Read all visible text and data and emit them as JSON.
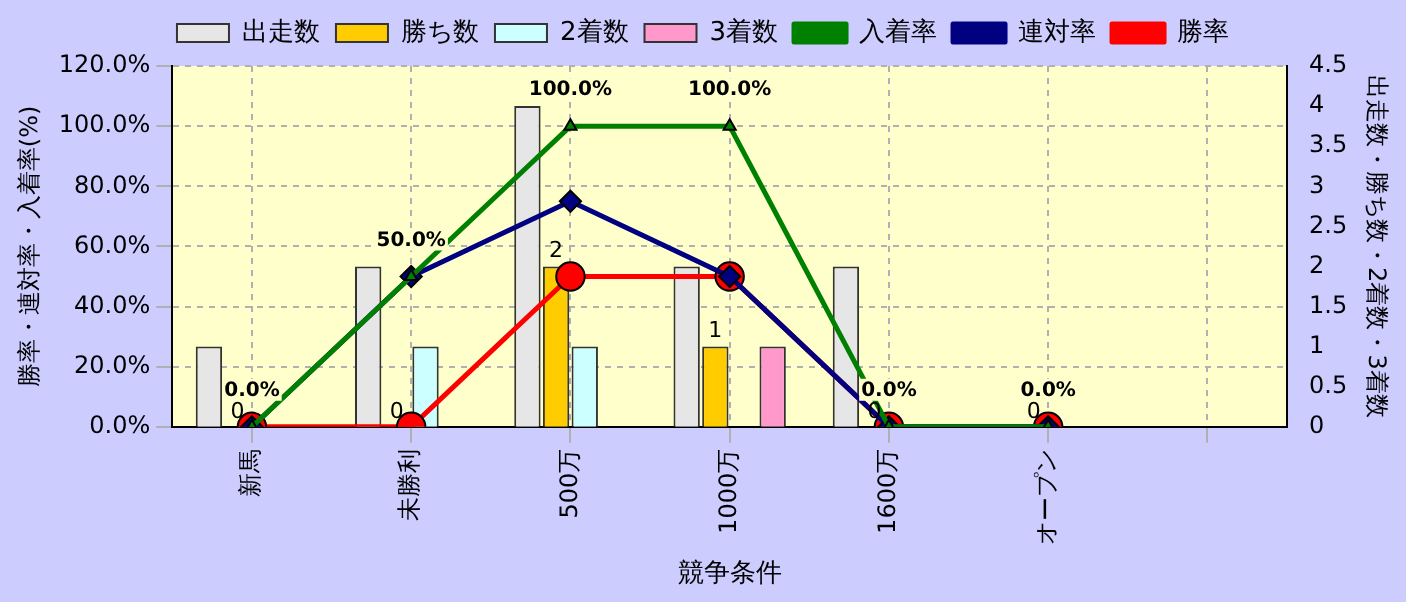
{
  "chart_data": {
    "type": "bar",
    "xlabel": "競争条件",
    "ylabel": "勝率・連対率・入着率(%)",
    "y2label": "出走数・勝ち数・2着数・3着数",
    "categories": [
      "新馬",
      "未勝利",
      "500万",
      "1000万",
      "1600万",
      "オープン"
    ],
    "series": [
      {
        "name": "出走数",
        "axis": "y2",
        "color": "#e6e6e6",
        "values": [
          1,
          2,
          4,
          2,
          2,
          0
        ]
      },
      {
        "name": "勝ち数",
        "axis": "y2",
        "color": "#ffcc00",
        "values": [
          0,
          0,
          2,
          1,
          0,
          0
        ],
        "value_labels": [
          "0",
          "0",
          "2",
          "1",
          "0",
          "0"
        ]
      },
      {
        "name": "2着数",
        "axis": "y2",
        "color": "#ccffff",
        "values": [
          0,
          1,
          1,
          0,
          0,
          0
        ]
      },
      {
        "name": "3着数",
        "axis": "y2",
        "color": "#ff99cc",
        "values": [
          0,
          0,
          0,
          1,
          0,
          0
        ]
      },
      {
        "name": "入着率",
        "type": "line",
        "marker": "triangle",
        "color": "#008000",
        "values": [
          0,
          50,
          100,
          100,
          0,
          0
        ],
        "value_labels": [
          "0.0%",
          "50.0%",
          "100.0%",
          "100.0%",
          "0.0%",
          "0.0%"
        ]
      },
      {
        "name": "連対率",
        "type": "line",
        "marker": "diamond",
        "color": "#000080",
        "values": [
          0,
          50,
          75,
          50,
          0,
          0
        ]
      },
      {
        "name": "勝率",
        "type": "line",
        "marker": "circle",
        "color": "#ff0000",
        "values": [
          0,
          0,
          50,
          50,
          0,
          0
        ]
      }
    ],
    "ylim": [
      0,
      120
    ],
    "yticks": [
      {
        "value": 0,
        "label": "0.0%"
      },
      {
        "value": 20,
        "label": "20.0%"
      },
      {
        "value": 40,
        "label": "40.0%"
      },
      {
        "value": 60,
        "label": "60.0%"
      },
      {
        "value": 80,
        "label": "80.0%"
      },
      {
        "value": 100,
        "label": "100.0%"
      },
      {
        "value": 120,
        "label": "120.0%"
      }
    ],
    "y2lim": [
      0,
      4.5
    ],
    "y2ticks": [
      0,
      0.5,
      1,
      1.5,
      2,
      2.5,
      3,
      3.5,
      4,
      4.5
    ],
    "grid": true,
    "legend": "top"
  }
}
